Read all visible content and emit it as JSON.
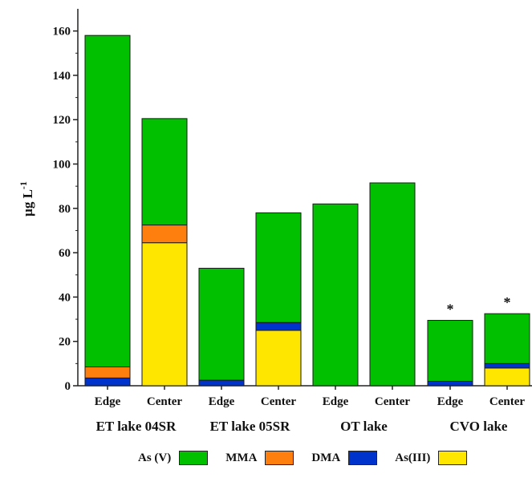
{
  "colors": {
    "as_v": "#00c000",
    "mma": "#ff7f0e",
    "dma": "#0033cc",
    "as_iii": "#ffe600",
    "axis": "#222222"
  },
  "chart_data": {
    "type": "bar",
    "stacked": true,
    "ylabel": "µg L",
    "ylabel_superscript": "-1",
    "ylim": [
      0,
      170
    ],
    "yticks": [
      0,
      20,
      40,
      60,
      80,
      100,
      120,
      140,
      160
    ],
    "categories": [
      "Edge",
      "Center",
      "Edge",
      "Center",
      "Edge",
      "Center",
      "Edge",
      "Center"
    ],
    "groups": [
      {
        "label": "ET lake 04SR",
        "categories": [
          0,
          1
        ]
      },
      {
        "label": "ET lake 05SR",
        "categories": [
          2,
          3
        ]
      },
      {
        "label": "OT lake",
        "categories": [
          4,
          5
        ]
      },
      {
        "label": "CVO lake",
        "categories": [
          6,
          7
        ]
      }
    ],
    "series": [
      {
        "name": "As(III)",
        "color_key": "as_iii",
        "values": [
          0,
          64.5,
          0,
          25,
          0,
          0,
          0,
          8
        ]
      },
      {
        "name": "DMA",
        "color_key": "dma",
        "values": [
          3.5,
          0,
          2.5,
          3.5,
          0,
          0,
          2,
          2
        ]
      },
      {
        "name": "MMA",
        "color_key": "mma",
        "values": [
          5,
          8,
          0,
          0,
          0,
          0,
          0,
          0
        ]
      },
      {
        "name": "As (V)",
        "color_key": "as_v",
        "values": [
          149.5,
          48,
          50.5,
          49.5,
          82,
          91.5,
          27.5,
          22.5
        ]
      }
    ],
    "annotations": [
      {
        "category": 6,
        "text": "*"
      },
      {
        "category": 7,
        "text": "*"
      }
    ],
    "legend": {
      "position": "bottom",
      "entries": [
        {
          "label": "As (V)",
          "color_key": "as_v"
        },
        {
          "label": "MMA",
          "color_key": "mma"
        },
        {
          "label": "DMA",
          "color_key": "dma"
        },
        {
          "label": "As(III)",
          "color_key": "as_iii"
        }
      ]
    },
    "grid": false
  }
}
